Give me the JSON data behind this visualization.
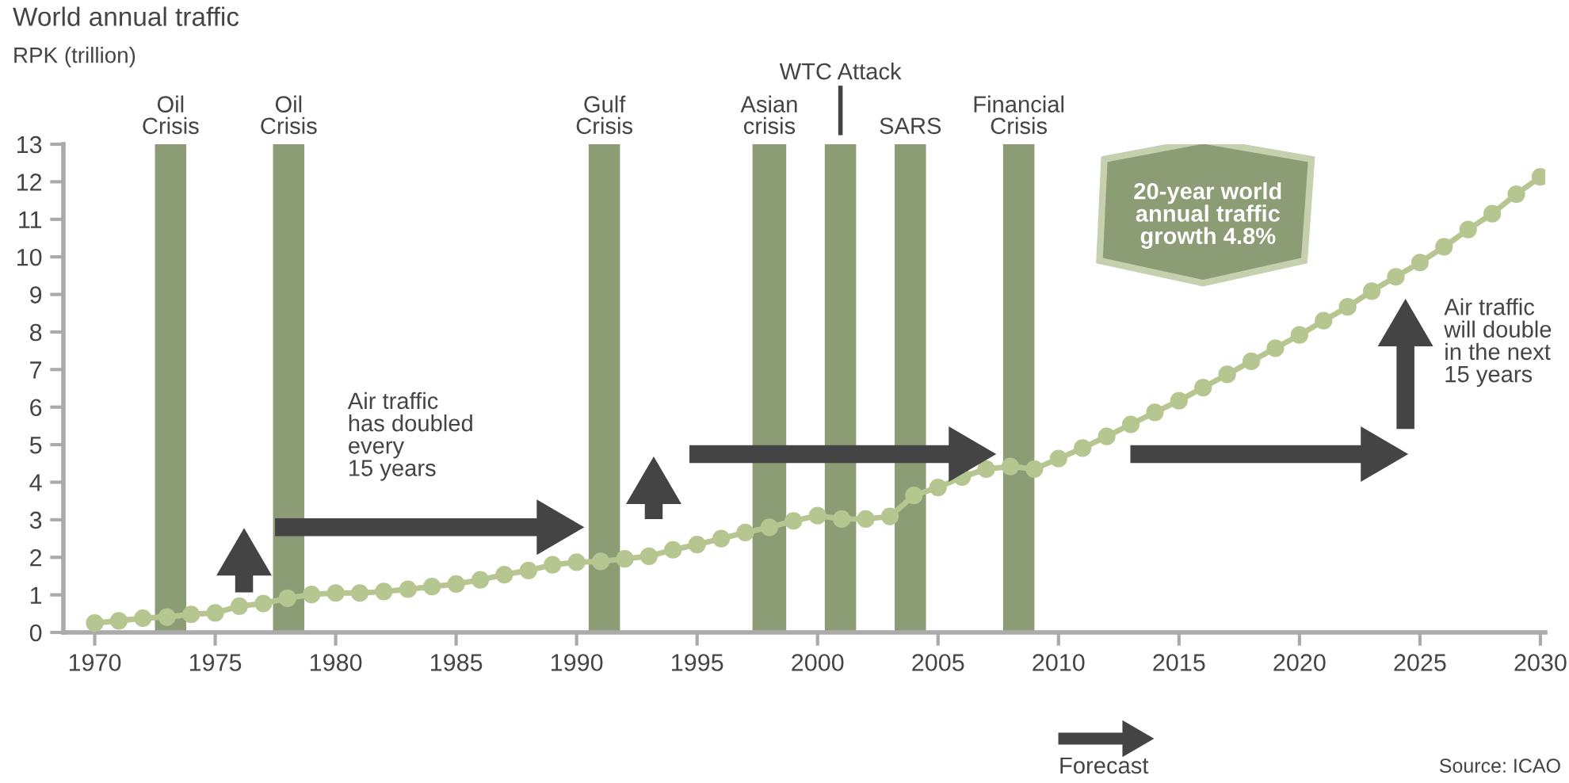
{
  "chart_data": {
    "type": "line",
    "title": "World annual traffic",
    "ylabel": "RPK (trillion)",
    "x": [
      1970,
      1971,
      1972,
      1973,
      1974,
      1975,
      1976,
      1977,
      1978,
      1979,
      1980,
      1981,
      1982,
      1983,
      1984,
      1985,
      1986,
      1987,
      1988,
      1989,
      1990,
      1991,
      1992,
      1993,
      1994,
      1995,
      1996,
      1997,
      1998,
      1999,
      2000,
      2001,
      2002,
      2003,
      2004,
      2005,
      2006,
      2007,
      2008,
      2009,
      2010,
      2011,
      2012,
      2013,
      2014,
      2015,
      2016,
      2017,
      2018,
      2019,
      2020,
      2021,
      2022,
      2023,
      2024,
      2025,
      2026,
      2027,
      2028,
      2029,
      2030
    ],
    "series": [
      {
        "color": "#b5c690",
        "values": [
          0.25,
          0.31,
          0.38,
          0.41,
          0.48,
          0.52,
          0.7,
          0.77,
          0.91,
          1.01,
          1.05,
          1.05,
          1.09,
          1.15,
          1.22,
          1.29,
          1.4,
          1.54,
          1.65,
          1.8,
          1.87,
          1.89,
          1.96,
          2.03,
          2.2,
          2.34,
          2.5,
          2.66,
          2.8,
          2.97,
          3.11,
          3.02,
          3.02,
          3.09,
          3.65,
          3.86,
          4.14,
          4.35,
          4.42,
          4.35,
          4.63,
          4.91,
          5.22,
          5.54,
          5.86,
          6.17,
          6.52,
          6.87,
          7.22,
          7.57,
          7.92,
          8.3,
          8.67,
          9.09,
          9.47,
          9.85,
          10.27,
          10.73,
          11.15,
          11.67,
          12.13
        ]
      }
    ],
    "marker": "circle",
    "line_style": "solid",
    "xlim": [
      1968.7,
      2030.2
    ],
    "xticks": [
      1970,
      1975,
      1980,
      1985,
      1990,
      1995,
      2000,
      2005,
      2010,
      2015,
      2020,
      2025,
      2030
    ],
    "ylim": [
      0,
      13
    ],
    "yticks": [
      0,
      1,
      2,
      3,
      4,
      5,
      6,
      7,
      8,
      9,
      10,
      11,
      12,
      13
    ],
    "grid": false,
    "legend": false,
    "bands": [
      {
        "axis": "x",
        "from": 1972.5,
        "to": 1973.8,
        "label": "Oil\nCrisis",
        "color": "#8c9c74"
      },
      {
        "axis": "x",
        "from": 1977.4,
        "to": 1978.7,
        "label": "Oil\nCrisis",
        "color": "#8c9c74"
      },
      {
        "axis": "x",
        "from": 1990.5,
        "to": 1991.8,
        "label": "Gulf\nCrisis",
        "color": "#8c9c74"
      },
      {
        "axis": "x",
        "from": 1997.3,
        "to": 1998.7,
        "label": "Asian\ncrisis",
        "color": "#8c9c74"
      },
      {
        "axis": "x",
        "from": 2000.3,
        "to": 2001.6,
        "label": "WTC Attack",
        "color": "#8c9c74"
      },
      {
        "axis": "x",
        "from": 2003.2,
        "to": 2004.5,
        "label": "SARS",
        "color": "#8c9c74"
      },
      {
        "axis": "x",
        "from": 2007.7,
        "to": 2009.0,
        "label": "Financial\nCrisis",
        "color": "#8c9c74"
      }
    ],
    "annotations": [
      "Air traffic\nhas doubled\nevery\n15 years",
      "Air traffic\nwill double\nin the next\n15 years",
      "20-year world\nannual traffic\ngrowth 4.8%",
      "Forecast",
      "Source: ICAO"
    ]
  }
}
